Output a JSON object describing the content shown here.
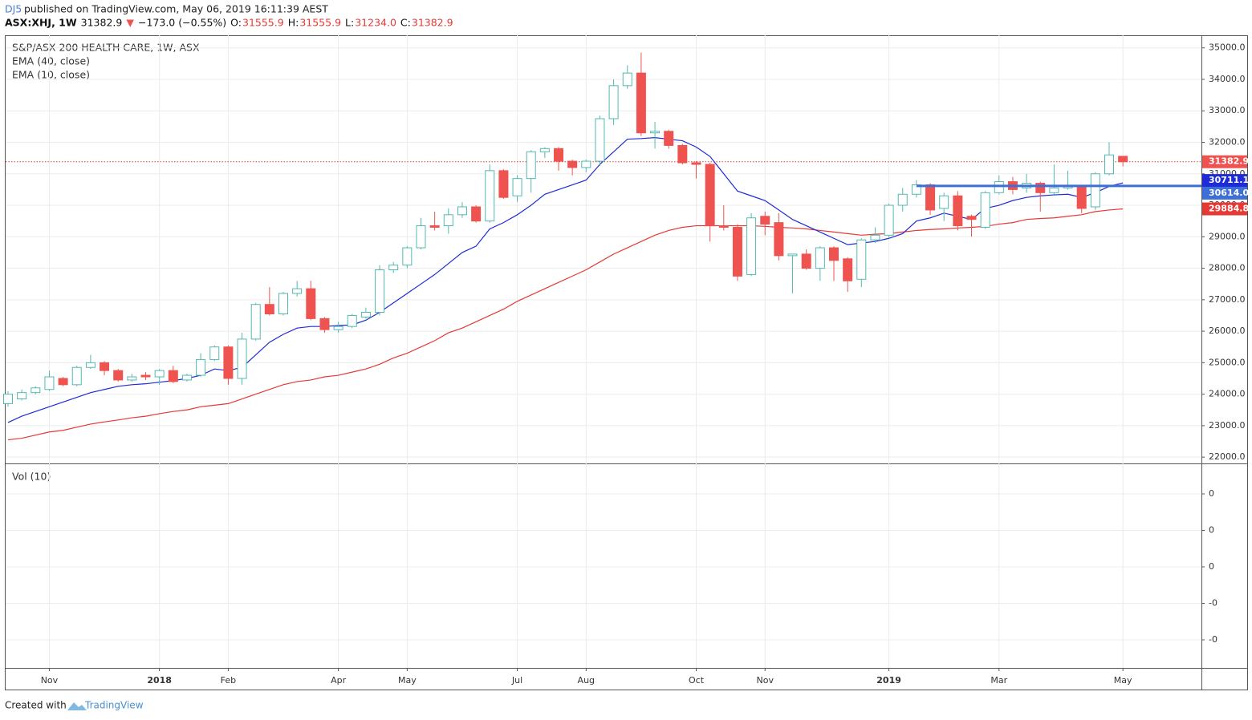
{
  "header": {
    "author": "DJ5",
    "published": " published on TradingView.com, May 06, 2019 16:11:39 AEST",
    "symbol": "ASX:XHJ, 1W",
    "last": "31382.9",
    "arrow": "▼",
    "change": "−173.0 (−0.55%)",
    "o_label": "O:",
    "o": "31555.9",
    "h_label": "H:",
    "h": "31555.9",
    "l_label": "L:",
    "l": "31234.0",
    "c_label": "C:",
    "c": "31382.9"
  },
  "footer": {
    "created": "Created with",
    "brand": "TradingView"
  },
  "chart_data": {
    "type": "candlestick",
    "title": "S&P/ASX 200 HEALTH CARE, 1W, ASX",
    "categories": [
      null,
      null,
      null,
      "Nov",
      null,
      null,
      null,
      null,
      null,
      null,
      null,
      "2018",
      null,
      null,
      null,
      null,
      "Feb",
      null,
      null,
      null,
      null,
      null,
      null,
      null,
      "Apr",
      null,
      null,
      null,
      null,
      "May",
      null,
      null,
      null,
      null,
      null,
      null,
      null,
      "Jul",
      null,
      null,
      null,
      null,
      "Aug",
      null,
      null,
      null,
      null,
      null,
      null,
      null,
      "Oct",
      null,
      null,
      null,
      null,
      "Nov",
      null,
      null,
      null,
      null,
      null,
      null,
      null,
      null,
      "2019",
      null,
      null,
      null,
      null,
      null,
      null,
      null,
      "Mar",
      null,
      null,
      null,
      null,
      null,
      null,
      null,
      null,
      "May"
    ],
    "open": [
      23700,
      23850,
      24050,
      24150,
      24500,
      24300,
      24850,
      25000,
      24750,
      24450,
      24600,
      24550,
      24750,
      24450,
      24600,
      25100,
      25500,
      24500,
      25750,
      26850,
      26550,
      27200,
      27350,
      26400,
      26050,
      26150,
      26450,
      26600,
      27950,
      28100,
      28650,
      29350,
      29350,
      29700,
      29950,
      29500,
      31100,
      30300,
      30850,
      31700,
      31800,
      31400,
      31200,
      31400,
      32750,
      33800,
      34200,
      32300,
      32350,
      31900,
      31350,
      31300,
      29350,
      29300,
      27800,
      29650,
      29450,
      28400,
      28450,
      28000,
      28650,
      28300,
      27650,
      28900,
      29050,
      30000,
      30350,
      30650,
      29900,
      30300,
      29650,
      29300,
      30400,
      30750,
      30550,
      30700,
      30400,
      30550,
      30600,
      29950,
      31000,
      31555.9
    ],
    "high": [
      24100,
      24150,
      24250,
      24750,
      24550,
      24900,
      25250,
      25050,
      24800,
      24650,
      24700,
      24800,
      24900,
      24650,
      25300,
      25550,
      25550,
      25950,
      26900,
      27400,
      27250,
      27600,
      27600,
      26450,
      26300,
      26550,
      26750,
      28100,
      28200,
      28700,
      29600,
      29800,
      29900,
      30100,
      30000,
      31300,
      31150,
      30950,
      31750,
      31850,
      31850,
      31450,
      31450,
      32850,
      34000,
      34450,
      34850,
      32650,
      32400,
      31950,
      31400,
      31350,
      30000,
      29400,
      29750,
      29800,
      29750,
      28450,
      28600,
      28700,
      28700,
      28350,
      28950,
      29300,
      30050,
      30550,
      30800,
      30700,
      30400,
      30450,
      29700,
      30450,
      30950,
      30900,
      31000,
      30750,
      31300,
      31100,
      30650,
      31050,
      32000,
      31555.9
    ],
    "low": [
      23600,
      23800,
      24000,
      24100,
      24250,
      24250,
      24800,
      24600,
      24400,
      24400,
      24450,
      24300,
      24350,
      24400,
      24550,
      25050,
      24300,
      24300,
      25700,
      26500,
      26500,
      27100,
      26350,
      25950,
      25950,
      26100,
      26400,
      26500,
      27850,
      28000,
      28600,
      29200,
      29100,
      29600,
      29450,
      29450,
      30200,
      30100,
      30400,
      31500,
      31100,
      30950,
      31050,
      31250,
      32550,
      33700,
      32200,
      31800,
      31800,
      31300,
      30850,
      28850,
      29200,
      27600,
      27750,
      29050,
      28250,
      27200,
      27950,
      27600,
      27600,
      27250,
      27400,
      28800,
      28950,
      29800,
      30250,
      29700,
      29500,
      29200,
      29000,
      29250,
      30350,
      30350,
      30400,
      29800,
      30350,
      30500,
      29750,
      29850,
      30950,
      31234
    ],
    "close": [
      24000,
      24050,
      24200,
      24550,
      24300,
      24850,
      25000,
      24750,
      24450,
      24550,
      24550,
      24750,
      24400,
      24600,
      25100,
      25500,
      24500,
      25750,
      26850,
      26550,
      27200,
      27350,
      26400,
      26050,
      26150,
      26500,
      26600,
      27950,
      28100,
      28650,
      29350,
      29300,
      29700,
      29950,
      29500,
      31100,
      30250,
      30850,
      31700,
      31800,
      31400,
      31200,
      31400,
      32750,
      33800,
      34200,
      32300,
      32350,
      31900,
      31350,
      31300,
      29350,
      29300,
      27750,
      29600,
      29400,
      28400,
      28450,
      28000,
      28650,
      28250,
      27600,
      28900,
      29050,
      30000,
      30350,
      30650,
      29850,
      30300,
      29350,
      29550,
      30400,
      30750,
      30500,
      30700,
      30400,
      30550,
      30600,
      29900,
      31000,
      31600,
      31382.9
    ],
    "up_color": "#53b9b0",
    "down_color": "#ef5350",
    "series": [
      {
        "name": "EMA (40, close)",
        "color": "#e53935",
        "values": [
          22550,
          22600,
          22700,
          22800,
          22850,
          22950,
          23050,
          23120,
          23180,
          23250,
          23300,
          23380,
          23450,
          23500,
          23600,
          23650,
          23700,
          23850,
          24000,
          24150,
          24300,
          24400,
          24450,
          24550,
          24600,
          24700,
          24800,
          24950,
          25150,
          25300,
          25500,
          25700,
          25950,
          26100,
          26300,
          26500,
          26700,
          26950,
          27150,
          27350,
          27550,
          27750,
          27950,
          28200,
          28450,
          28650,
          28850,
          29050,
          29200,
          29300,
          29350,
          29350,
          29350,
          29350,
          29350,
          29330,
          29300,
          29280,
          29250,
          29200,
          29150,
          29100,
          29050,
          29080,
          29100,
          29150,
          29200,
          29230,
          29250,
          29280,
          29300,
          29330,
          29400,
          29450,
          29550,
          29580,
          29600,
          29650,
          29700,
          29800,
          29850,
          29884.8
        ]
      },
      {
        "name": "EMA (10, close)",
        "color": "#1e2bd6",
        "values": [
          23100,
          23300,
          23450,
          23600,
          23750,
          23900,
          24050,
          24150,
          24250,
          24300,
          24330,
          24380,
          24430,
          24500,
          24600,
          24800,
          24750,
          24850,
          25250,
          25650,
          25900,
          26100,
          26150,
          26150,
          26180,
          26200,
          26350,
          26600,
          26900,
          27200,
          27500,
          27800,
          28150,
          28500,
          28700,
          29250,
          29450,
          29700,
          30000,
          30350,
          30500,
          30650,
          30800,
          31300,
          31700,
          32100,
          32120,
          32150,
          32100,
          32050,
          31850,
          31550,
          31000,
          30450,
          30300,
          30150,
          29850,
          29550,
          29350,
          29150,
          28950,
          28750,
          28800,
          28850,
          28950,
          29100,
          29500,
          29600,
          29750,
          29650,
          29550,
          29900,
          30000,
          30150,
          30250,
          30300,
          30330,
          30350,
          30250,
          30400,
          30600,
          30711.1
        ]
      }
    ],
    "ylim": [
      21800,
      35400
    ],
    "yticks": [
      {
        "value": 22000,
        "label": "22000.0"
      },
      {
        "value": 23000,
        "label": "23000.0"
      },
      {
        "value": 24000,
        "label": "24000.0"
      },
      {
        "value": 25000,
        "label": "25000.0"
      },
      {
        "value": 26000,
        "label": "26000.0"
      },
      {
        "value": 27000,
        "label": "27000.0"
      },
      {
        "value": 28000,
        "label": "28000.0"
      },
      {
        "value": 29000,
        "label": "29000.0"
      },
      {
        "value": 30000,
        "label": "30000.0"
      },
      {
        "value": 31000,
        "label": "31000.0"
      },
      {
        "value": 32000,
        "label": "32000.0"
      },
      {
        "value": 33000,
        "label": "33000.0"
      },
      {
        "value": 34000,
        "label": "34000.0"
      },
      {
        "value": 35000,
        "label": "35000.0"
      }
    ],
    "grid": true,
    "last_price_line": {
      "value": 31382.9,
      "color": "#e53935"
    },
    "hline": {
      "value": 30614.0,
      "color": "#3d6fd6"
    },
    "price_labels": [
      {
        "value": 31382.9,
        "label": "31382.9",
        "color": "#ef5350"
      },
      {
        "value": 30711.1,
        "label": "30711.1",
        "color": "#1e2bd6"
      },
      {
        "value": 30614.0,
        "label": "30614.0",
        "color": "#3d6fd6"
      },
      {
        "value": 29884.8,
        "label": "29884.8",
        "color": "#e53935"
      }
    ],
    "volume": {
      "title": "Vol (10)",
      "axis_labels": [
        "0",
        "0",
        "0",
        "-0",
        "-0"
      ]
    }
  }
}
